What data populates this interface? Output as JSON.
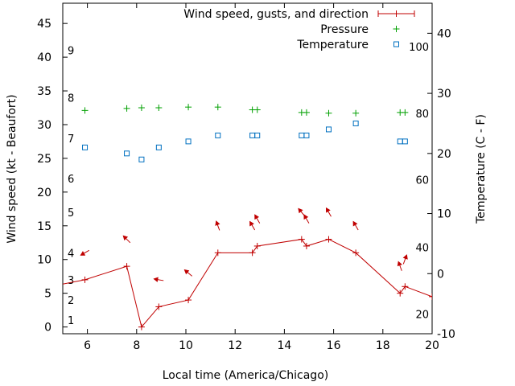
{
  "chart_data": {
    "type": "line",
    "title": "",
    "xlabel": "Local time (America/Chicago)",
    "ylabel_left": "Wind speed (kt - Beaufort)",
    "ylabel_right": "Temperature (C - F)",
    "xlim": [
      5,
      20
    ],
    "ylim_left": [
      -1,
      48
    ],
    "ylim_right": [
      -10,
      45
    ],
    "x_ticks": [
      6,
      8,
      10,
      12,
      14,
      16,
      18,
      20
    ],
    "y_left_ticks": [
      0,
      5,
      10,
      15,
      20,
      25,
      30,
      35,
      40,
      45
    ],
    "y_right_ticks": [
      -10,
      0,
      10,
      20,
      30,
      40
    ],
    "beaufort_labels": [
      {
        "text": "1",
        "kt": 1
      },
      {
        "text": "2",
        "kt": 4
      },
      {
        "text": "3",
        "kt": 7
      },
      {
        "text": "4",
        "kt": 11
      },
      {
        "text": "5",
        "kt": 17
      },
      {
        "text": "6",
        "kt": 22
      },
      {
        "text": "7",
        "kt": 28
      },
      {
        "text": "8",
        "kt": 34
      },
      {
        "text": "9",
        "kt": 41
      }
    ],
    "fahrenheit_labels": [
      {
        "text": "20",
        "c": -6.7
      },
      {
        "text": "40",
        "c": 4.4
      },
      {
        "text": "60",
        "c": 15.6
      },
      {
        "text": "80",
        "c": 26.7
      },
      {
        "text": "100",
        "c": 37.8
      }
    ],
    "legend": [
      {
        "label": "Wind speed, gusts, and direction",
        "symbol": "line-plus",
        "color": "#c00000"
      },
      {
        "label": "Pressure",
        "symbol": "plus",
        "color": "#00a000"
      },
      {
        "label": "Temperature",
        "symbol": "square",
        "color": "#0070c0"
      }
    ],
    "legend_position": "top-right",
    "grid": false,
    "series": [
      {
        "name": "Wind speed, gusts, and direction",
        "color": "#c00000",
        "points": [
          {
            "x": 4.5,
            "y": 6
          },
          {
            "x": 5.9,
            "y": 7
          },
          {
            "x": 7.6,
            "y": 9
          },
          {
            "x": 8.2,
            "y": 0
          },
          {
            "x": 8.9,
            "y": 3
          },
          {
            "x": 10.1,
            "y": 4
          },
          {
            "x": 11.3,
            "y": 11
          },
          {
            "x": 12.7,
            "y": 11
          },
          {
            "x": 12.9,
            "y": 12
          },
          {
            "x": 14.7,
            "y": 13
          },
          {
            "x": 14.9,
            "y": 12
          },
          {
            "x": 15.8,
            "y": 13
          },
          {
            "x": 16.9,
            "y": 11
          },
          {
            "x": 18.7,
            "y": 5
          },
          {
            "x": 18.9,
            "y": 6
          },
          {
            "x": 20.0,
            "y": 4.5
          }
        ],
        "direction_arrows": [
          {
            "x": 5.9,
            "y": 11,
            "dir_deg": 240
          },
          {
            "x": 7.6,
            "y": 13,
            "dir_deg": 315
          },
          {
            "x": 8.9,
            "y": 7,
            "dir_deg": 280
          },
          {
            "x": 10.1,
            "y": 8,
            "dir_deg": 310
          },
          {
            "x": 11.3,
            "y": 15,
            "dir_deg": 340
          },
          {
            "x": 12.7,
            "y": 15,
            "dir_deg": 330
          },
          {
            "x": 12.9,
            "y": 16,
            "dir_deg": 330
          },
          {
            "x": 14.7,
            "y": 17,
            "dir_deg": 320
          },
          {
            "x": 14.9,
            "y": 16,
            "dir_deg": 330
          },
          {
            "x": 15.8,
            "y": 17,
            "dir_deg": 330
          },
          {
            "x": 16.9,
            "y": 15,
            "dir_deg": 330
          },
          {
            "x": 18.7,
            "y": 9,
            "dir_deg": 340
          },
          {
            "x": 18.9,
            "y": 10,
            "dir_deg": 20
          }
        ]
      },
      {
        "name": "Pressure",
        "color": "#00a000",
        "points": [
          {
            "x": 5.9,
            "y": 32.1
          },
          {
            "x": 7.6,
            "y": 32.4
          },
          {
            "x": 8.2,
            "y": 32.5
          },
          {
            "x": 8.9,
            "y": 32.5
          },
          {
            "x": 10.1,
            "y": 32.6
          },
          {
            "x": 11.3,
            "y": 32.6
          },
          {
            "x": 12.7,
            "y": 32.2
          },
          {
            "x": 12.9,
            "y": 32.2
          },
          {
            "x": 14.7,
            "y": 31.8
          },
          {
            "x": 14.9,
            "y": 31.8
          },
          {
            "x": 15.8,
            "y": 31.7
          },
          {
            "x": 16.9,
            "y": 31.7
          },
          {
            "x": 18.7,
            "y": 31.8
          },
          {
            "x": 18.9,
            "y": 31.8
          }
        ]
      },
      {
        "name": "Temperature",
        "color": "#0070c0",
        "points": [
          {
            "x": 5.9,
            "y": 21
          },
          {
            "x": 7.6,
            "y": 20
          },
          {
            "x": 8.2,
            "y": 19
          },
          {
            "x": 8.9,
            "y": 21
          },
          {
            "x": 10.1,
            "y": 22
          },
          {
            "x": 11.3,
            "y": 23
          },
          {
            "x": 12.7,
            "y": 23
          },
          {
            "x": 12.9,
            "y": 23
          },
          {
            "x": 14.7,
            "y": 23
          },
          {
            "x": 14.9,
            "y": 23
          },
          {
            "x": 15.8,
            "y": 24
          },
          {
            "x": 16.9,
            "y": 25
          },
          {
            "x": 18.7,
            "y": 22
          },
          {
            "x": 18.9,
            "y": 22
          }
        ]
      }
    ]
  }
}
